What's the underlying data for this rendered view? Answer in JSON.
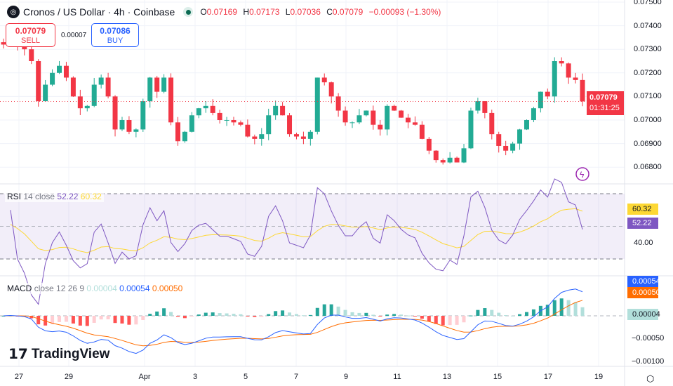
{
  "header": {
    "title": "Cronos / US Dollar · 4h · Coinbase",
    "logo_icon": "cronos-logo-icon",
    "open_label": "O",
    "open": "0.07169",
    "high_label": "H",
    "high": "0.07173",
    "low_label": "L",
    "low": "0.07036",
    "close_label": "C",
    "close": "0.07079",
    "change": "−0.00093 (−1.30%)"
  },
  "trade": {
    "sell_price": "0.07079",
    "sell_label": "SELL",
    "spread": "0.00007",
    "buy_price": "0.07086",
    "buy_label": "BUY"
  },
  "price_axis": {
    "ticks": [
      "0.07500",
      "0.07400",
      "0.07300",
      "0.07200",
      "0.07100",
      "0.07000",
      "0.06900",
      "0.06800"
    ],
    "last_price": "0.07079",
    "countdown": "01:31:25"
  },
  "rsi": {
    "label": "RSI",
    "params": "14 close",
    "value": "52.22",
    "ma_value": "60.32",
    "tick": "40.00",
    "upper": 70,
    "lower": 30
  },
  "macd": {
    "label": "MACD",
    "params": "close 12 26 9",
    "hist": "0.00004",
    "macd": "0.00054",
    "signal": "0.00050",
    "ticks": [
      "−0.00050",
      "−0.00100"
    ]
  },
  "time_axis": [
    "27",
    "29",
    "Apr",
    "3",
    "5",
    "7",
    "9",
    "11",
    "13",
    "15",
    "17",
    "19"
  ],
  "brand": "TradingView",
  "colors": {
    "up": "#22ab94",
    "down": "#f23645",
    "rsi": "#7e57c2",
    "rsi_ma": "#fdd835",
    "macd": "#2962ff",
    "signal": "#ff6d00"
  },
  "chart_data": {
    "type": "candlestick",
    "price_range": [
      0.0675,
      0.075
    ],
    "closes": [
      0.0732,
      0.0733,
      0.0731,
      0.073,
      0.0725,
      0.0708,
      0.0715,
      0.072,
      0.0723,
      0.0718,
      0.071,
      0.0705,
      0.0706,
      0.0715,
      0.0718,
      0.071,
      0.0696,
      0.07,
      0.0695,
      0.0696,
      0.0708,
      0.0718,
      0.0712,
      0.0718,
      0.0699,
      0.0691,
      0.0695,
      0.0702,
      0.0705,
      0.0706,
      0.0703,
      0.07,
      0.07,
      0.0699,
      0.0698,
      0.0693,
      0.0692,
      0.0694,
      0.0702,
      0.0706,
      0.0702,
      0.0694,
      0.0693,
      0.0692,
      0.0695,
      0.0718,
      0.0716,
      0.071,
      0.0704,
      0.0699,
      0.0699,
      0.0702,
      0.0704,
      0.0698,
      0.0696,
      0.0706,
      0.0704,
      0.0701,
      0.0699,
      0.0698,
      0.0692,
      0.0687,
      0.0683,
      0.0682,
      0.0684,
      0.0682,
      0.0688,
      0.0704,
      0.0708,
      0.0703,
      0.0694,
      0.0689,
      0.0687,
      0.069,
      0.0696,
      0.07,
      0.0705,
      0.0712,
      0.071,
      0.0725,
      0.0724,
      0.0718,
      0.0717,
      0.07079
    ]
  }
}
